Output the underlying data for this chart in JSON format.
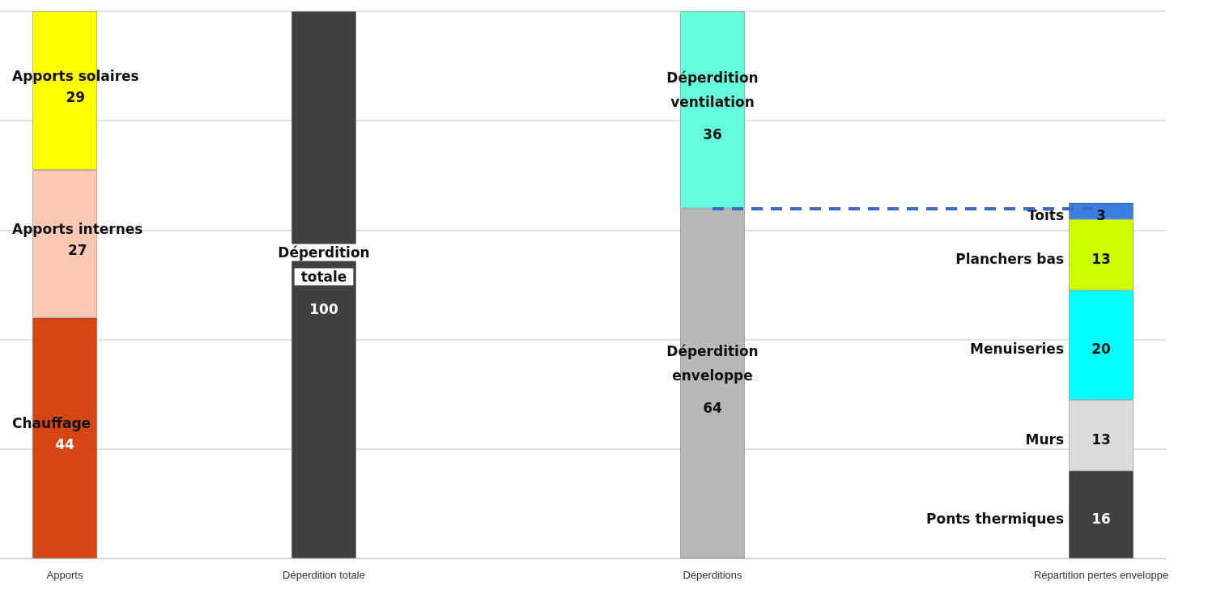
{
  "chart_data": {
    "type": "bar",
    "stacked": true,
    "data_labels": true,
    "grid": "y",
    "legend": false,
    "tick_labels": "x",
    "categories": [
      "Apports",
      null,
      "Déperdition totale",
      null,
      null,
      "Déperditions",
      null,
      null,
      "Répartition pertes enveloppe"
    ],
    "ylim": [
      0,
      100
    ],
    "yticks": [
      0,
      20,
      40,
      60,
      80,
      100
    ],
    "series": [
      {
        "name": "Chauffage",
        "color": "#d64514",
        "values": [
          44,
          null,
          null,
          null,
          null,
          null,
          null,
          null,
          null
        ]
      },
      {
        "name": "Apports internes",
        "color": "#fcc8b4",
        "values": [
          27,
          null,
          null,
          null,
          null,
          null,
          null,
          null,
          null
        ]
      },
      {
        "name": "Apports solaires",
        "color": "#ffff00",
        "values": [
          29,
          null,
          null,
          null,
          null,
          null,
          null,
          null,
          null
        ]
      },
      {
        "name": "Déperdition totale",
        "color": "#404040",
        "values": [
          null,
          null,
          100,
          null,
          null,
          null,
          null,
          null,
          null
        ]
      },
      {
        "name": "Déperdition enveloppe",
        "color": "#b8b8b8",
        "values": [
          null,
          null,
          null,
          null,
          null,
          64,
          null,
          null,
          null
        ]
      },
      {
        "name": "Déperdition ventilation",
        "color": "#66ffdd",
        "values": [
          null,
          null,
          null,
          null,
          null,
          36,
          null,
          null,
          null
        ]
      },
      {
        "name": "Ponts thermiques",
        "color": "#404040",
        "values": [
          null,
          null,
          null,
          null,
          null,
          null,
          null,
          null,
          16
        ]
      },
      {
        "name": "Murs",
        "color": "#dcdcdc",
        "values": [
          null,
          null,
          null,
          null,
          null,
          null,
          null,
          null,
          13
        ]
      },
      {
        "name": "Menuiseries",
        "color": "#00ffff",
        "values": [
          null,
          null,
          null,
          null,
          null,
          null,
          null,
          null,
          20
        ]
      },
      {
        "name": "Planchers bas",
        "color": "#ccff00",
        "values": [
          null,
          null,
          null,
          null,
          null,
          null,
          null,
          null,
          13
        ]
      },
      {
        "name": "Toits",
        "color": "#3a7ee0",
        "values": [
          null,
          null,
          null,
          null,
          null,
          null,
          null,
          null,
          3
        ]
      }
    ],
    "ref_lines": [
      {
        "axis": "y",
        "value": 64,
        "color": "#3a6bc0",
        "line_style": "dashed"
      }
    ]
  }
}
